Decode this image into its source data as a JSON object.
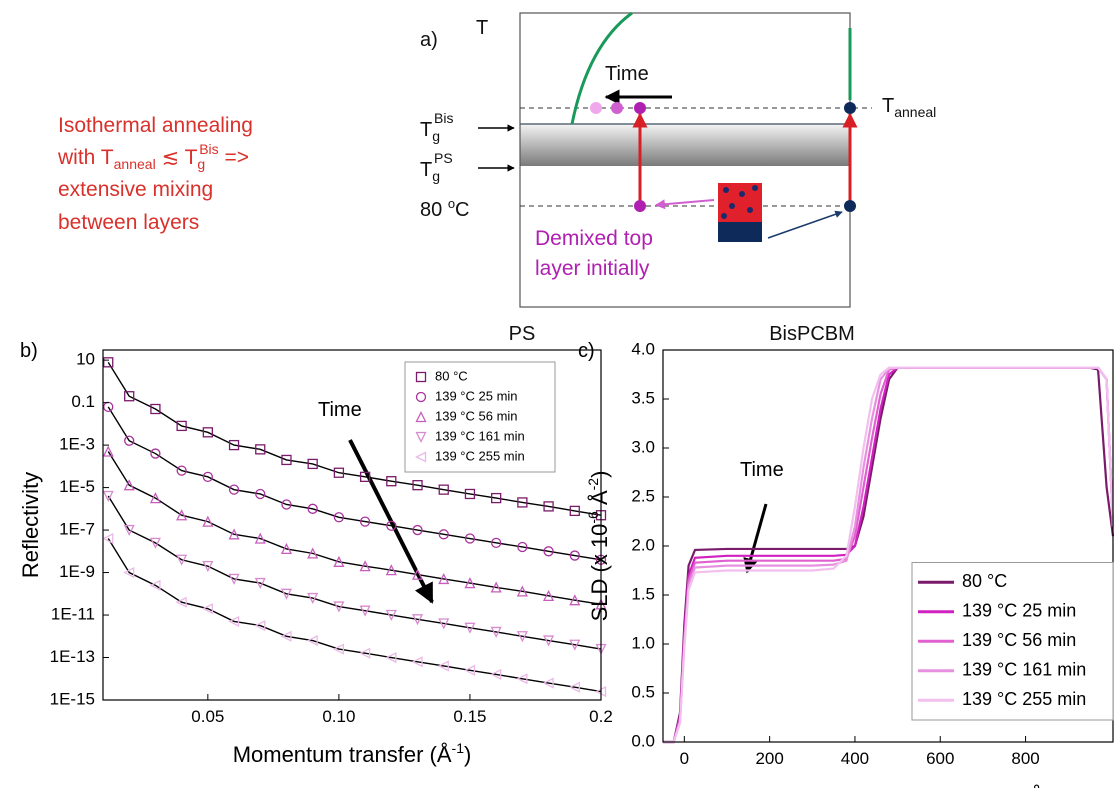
{
  "annotation": {
    "line1": "Isothermal annealing",
    "line2": [
      "with  T",
      "anneal",
      " ≲ T",
      "g",
      "Bis",
      " =>"
    ],
    "line3": "extensive mixing",
    "line4": "between layers"
  },
  "diagram": {
    "panel_label": "a)",
    "axis_label": "T",
    "time_label": "Time",
    "tg_bis": [
      "T",
      "g",
      "Bis"
    ],
    "tg_ps": [
      "T",
      "g",
      "PS"
    ],
    "low_temp": [
      "80 ",
      "o",
      "C"
    ],
    "t_anneal": [
      "T",
      "anneal"
    ],
    "note": [
      "Demixed top",
      "layer initially"
    ],
    "left_label": "PS",
    "right_label": "BisPCBM"
  },
  "chart_data": [
    {
      "type": "line",
      "panel_label": "b)",
      "annotation": "Time",
      "x_label": [
        "Momentum transfer (Å",
        "-1",
        ")"
      ],
      "y_label": [
        "Reflectivity"
      ],
      "y_log": true,
      "xlim": [
        0.01,
        0.2
      ],
      "ylim": [
        1e-15,
        30
      ],
      "xticks": [
        0.05,
        {
          "value": 0.1,
          "label": "0.10"
        },
        0.15,
        0.2
      ],
      "yticks": [
        10,
        0.1,
        {
          "value": 0.001,
          "label": "1E-3"
        },
        {
          "value": 1e-05,
          "label": "1E-5"
        },
        {
          "value": 1e-07,
          "label": "1E-7"
        },
        {
          "value": 1e-09,
          "label": "1E-9"
        },
        {
          "value": 1e-11,
          "label": "1E-11"
        },
        {
          "value": 1e-13,
          "label": "1E-13"
        },
        {
          "value": 1e-15,
          "label": "1E-15"
        }
      ],
      "legend": "upper-right",
      "line_color": "#000000",
      "x": [
        0.012,
        0.02,
        0.03,
        0.04,
        0.05,
        0.06,
        0.07,
        0.08,
        0.09,
        0.1,
        0.11,
        0.12,
        0.13,
        0.14,
        0.15,
        0.16,
        0.17,
        0.18,
        0.19,
        0.2
      ],
      "series": [
        {
          "name": "80 °C",
          "color": "#7a1a6a",
          "marker": "square",
          "values": [
            7.9,
            0.2,
            0.05,
            0.008,
            0.004,
            0.001,
            0.00063,
            0.0002,
            0.00013,
            5e-05,
            3.2e-05,
            2e-05,
            1.3e-05,
            8e-06,
            5e-06,
            3.2e-06,
            2e-06,
            1.3e-06,
            8e-07,
            5e-07
          ]
        },
        {
          "name": "139 °C 25 min",
          "color": "#a8309c",
          "marker": "circle",
          "values": [
            0.063,
            0.0016,
            0.0004,
            6.3e-05,
            3.2e-05,
            8e-06,
            5e-06,
            1.6e-06,
            1e-06,
            4e-07,
            2.5e-07,
            1.6e-07,
            1e-07,
            6.3e-08,
            4e-08,
            2.5e-08,
            1.6e-08,
            1e-08,
            6.3e-09,
            4e-09
          ]
        },
        {
          "name": "139 °C 56 min",
          "color": "#c65cbc",
          "marker": "triangle-up",
          "values": [
            0.0005,
            1.3e-05,
            3.2e-06,
            5e-07,
            2.5e-07,
            6.3e-08,
            4e-08,
            1.3e-08,
            8e-09,
            3.2e-09,
            2e-09,
            1.3e-09,
            8e-10,
            5e-10,
            3.2e-10,
            2e-10,
            1.3e-10,
            8e-11,
            5e-11,
            3.2e-11
          ]
        },
        {
          "name": "139 °C 161 min",
          "color": "#d88ad0",
          "marker": "triangle-down",
          "values": [
            4e-06,
            1e-07,
            2.5e-08,
            4e-09,
            2e-09,
            5e-10,
            3.2e-10,
            1e-10,
            6.3e-11,
            2.5e-11,
            1.6e-11,
            1e-11,
            6.3e-12,
            4e-12,
            2.5e-12,
            1.6e-12,
            1e-12,
            6.3e-13,
            4e-13,
            2.5e-13
          ]
        },
        {
          "name": "139 °C 255 min",
          "color": "#eab8e6",
          "marker": "triangle-left",
          "values": [
            4e-08,
            1e-09,
            2.5e-10,
            4e-11,
            2e-11,
            5e-12,
            3.2e-12,
            1e-12,
            6.3e-13,
            2.5e-13,
            1.6e-13,
            1e-13,
            6.3e-14,
            4e-14,
            2.5e-14,
            1.6e-14,
            1e-14,
            6.3e-15,
            4e-15,
            2.5e-15
          ]
        }
      ]
    },
    {
      "type": "line",
      "panel_label": "c)",
      "annotation": "Time",
      "x_label": [
        "Distance from sample surface (Å)"
      ],
      "y_label": [
        "SLD (x 10",
        "-6",
        " Å",
        "-2",
        ")"
      ],
      "xlim": [
        -50,
        1005
      ],
      "ylim": [
        0,
        4
      ],
      "xticks": [
        0,
        200,
        400,
        600,
        800
      ],
      "yticks": [
        {
          "value": 0,
          "label": "0.0"
        },
        0.5,
        {
          "value": 1,
          "label": "1.0"
        },
        1.5,
        {
          "value": 2,
          "label": "2.0"
        },
        2.5,
        {
          "value": 3,
          "label": "3.0"
        },
        3.5,
        {
          "value": 4,
          "label": "4.0"
        }
      ],
      "legend": "lower-right",
      "x": [
        -50,
        -25,
        -10,
        0,
        10,
        25,
        100,
        200,
        300,
        350,
        380,
        400,
        420,
        440,
        460,
        480,
        500,
        600,
        800,
        900,
        950,
        970,
        990,
        1005
      ],
      "series": [
        {
          "name": "80 °C",
          "color": "#7a1a6a",
          "values": [
            0,
            0,
            0.3,
            1.2,
            1.8,
            1.96,
            1.97,
            1.97,
            1.97,
            1.97,
            1.97,
            2.0,
            2.3,
            2.8,
            3.3,
            3.7,
            3.82,
            3.82,
            3.82,
            3.82,
            3.82,
            3.8,
            2.6,
            2.1
          ]
        },
        {
          "name": "139 °C 25 min",
          "color": "#d020c0",
          "values": [
            0,
            0,
            0.25,
            1.1,
            1.7,
            1.88,
            1.9,
            1.9,
            1.9,
            1.9,
            1.91,
            2.0,
            2.4,
            2.9,
            3.4,
            3.75,
            3.82,
            3.82,
            3.82,
            3.82,
            3.82,
            3.82,
            3.7,
            2.2
          ]
        },
        {
          "name": "139 °C 56 min",
          "color": "#e060d0",
          "values": [
            0,
            0,
            0.25,
            1.05,
            1.65,
            1.83,
            1.85,
            1.85,
            1.85,
            1.85,
            1.87,
            2.1,
            2.6,
            3.1,
            3.55,
            3.8,
            3.82,
            3.82,
            3.82,
            3.82,
            3.82,
            3.82,
            3.7,
            2.2
          ]
        },
        {
          "name": "139 °C 161 min",
          "color": "#e890e0",
          "values": [
            0,
            0,
            0.2,
            1.0,
            1.6,
            1.78,
            1.8,
            1.8,
            1.8,
            1.81,
            1.85,
            2.2,
            2.8,
            3.3,
            3.7,
            3.81,
            3.82,
            3.82,
            3.82,
            3.82,
            3.82,
            3.82,
            3.7,
            2.2
          ]
        },
        {
          "name": "139 °C 255 min",
          "color": "#f2c0ee",
          "values": [
            0,
            0,
            0.2,
            0.95,
            1.55,
            1.73,
            1.75,
            1.75,
            1.75,
            1.77,
            1.9,
            2.4,
            3.0,
            3.5,
            3.75,
            3.82,
            3.82,
            3.82,
            3.82,
            3.82,
            3.82,
            3.82,
            3.7,
            2.2
          ]
        }
      ]
    }
  ]
}
